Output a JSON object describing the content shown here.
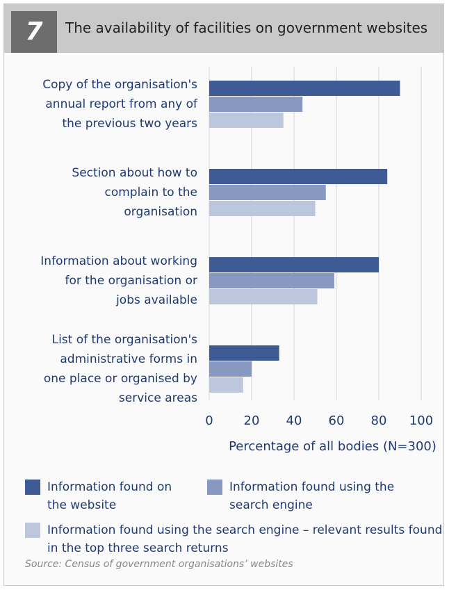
{
  "chart_data": {
    "type": "bar",
    "orientation": "horizontal",
    "number": "7",
    "title": "The availability of facilities on government websites",
    "categories": [
      "Copy of the organisation's\nannual report from any of\nthe previous two years",
      "Section about how to\ncomplain to the\norganisation",
      "Information about working\nfor the organisation or\njobs available",
      "List of the organisation's\nadministrative forms in\none place or organised by\nservice areas"
    ],
    "series": [
      {
        "name": "Information found on the website",
        "color": "#3e5b96",
        "values": [
          90,
          84,
          80,
          33
        ]
      },
      {
        "name": "Information found using the search engine",
        "color": "#8899c1",
        "values": [
          44,
          55,
          59,
          20
        ]
      },
      {
        "name": "Information found using the search engine – relevant results found in the top three search returns",
        "color": "#bcc7de",
        "values": [
          35,
          50,
          51,
          16
        ]
      }
    ],
    "xlim": [
      0,
      100
    ],
    "xticks": [
      0,
      20,
      40,
      60,
      80,
      100
    ],
    "grid": true,
    "xlabel": "Percentage of all bodies (N=300)",
    "source": "Source: Census of government organisations’ websites"
  }
}
